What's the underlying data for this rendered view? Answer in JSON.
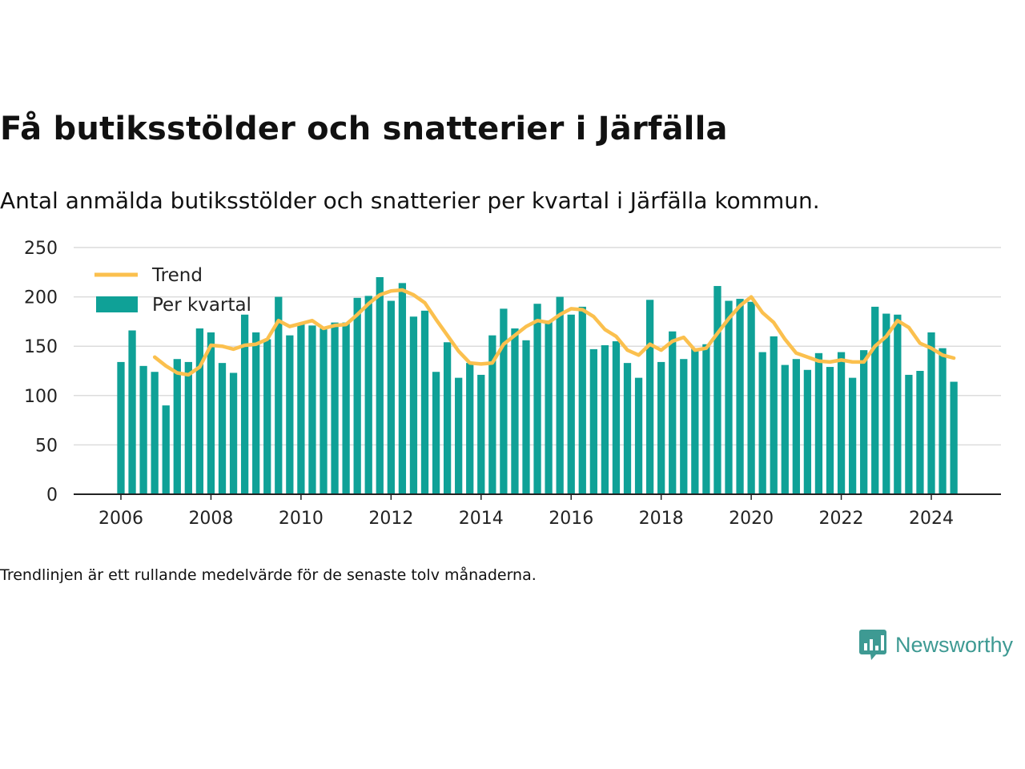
{
  "title": "Få butiksstölder och snatterier i Järfälla",
  "subtitle": "Antal anmälda butiksstölder och snatterier per kvartal i Järfälla kommun.",
  "note": "Trendlinjen är ett rullande medelvärde för de senaste tolv månaderna.",
  "brand": {
    "name": "Newsworthy",
    "icon": "chart-bubble-icon",
    "color": "#3e9a93"
  },
  "colors": {
    "bar": "#0fa197",
    "trend": "#fbc04e",
    "grid": "#dcdcdc",
    "axis": "#222222"
  },
  "chart_data": {
    "type": "bar",
    "title": "",
    "xlabel": "",
    "ylabel": "",
    "ylim": [
      0,
      250
    ],
    "yticks": [
      0,
      50,
      100,
      150,
      200,
      250
    ],
    "xticks": [
      2006,
      2008,
      2010,
      2012,
      2014,
      2016,
      2018,
      2020,
      2022,
      2024
    ],
    "grid": true,
    "legend": {
      "position": "top-left",
      "entries": [
        "Trend",
        "Per kvartal"
      ]
    },
    "categories": [
      "2006 Q1",
      "2006 Q2",
      "2006 Q3",
      "2006 Q4",
      "2007 Q1",
      "2007 Q2",
      "2007 Q3",
      "2007 Q4",
      "2008 Q1",
      "2008 Q2",
      "2008 Q3",
      "2008 Q4",
      "2009 Q1",
      "2009 Q2",
      "2009 Q3",
      "2009 Q4",
      "2010 Q1",
      "2010 Q2",
      "2010 Q3",
      "2010 Q4",
      "2011 Q1",
      "2011 Q2",
      "2011 Q3",
      "2011 Q4",
      "2012 Q1",
      "2012 Q2",
      "2012 Q3",
      "2012 Q4",
      "2013 Q1",
      "2013 Q2",
      "2013 Q3",
      "2013 Q4",
      "2014 Q1",
      "2014 Q2",
      "2014 Q3",
      "2014 Q4",
      "2015 Q1",
      "2015 Q2",
      "2015 Q3",
      "2015 Q4",
      "2016 Q1",
      "2016 Q2",
      "2016 Q3",
      "2016 Q4",
      "2017 Q1",
      "2017 Q2",
      "2017 Q3",
      "2017 Q4",
      "2018 Q1",
      "2018 Q2",
      "2018 Q3",
      "2018 Q4",
      "2019 Q1",
      "2019 Q2",
      "2019 Q3",
      "2019 Q4",
      "2020 Q1",
      "2020 Q2",
      "2020 Q3",
      "2020 Q4",
      "2021 Q1",
      "2021 Q2",
      "2021 Q3",
      "2021 Q4",
      "2022 Q1",
      "2022 Q2",
      "2022 Q3",
      "2022 Q4",
      "2023 Q1",
      "2023 Q2",
      "2023 Q3",
      "2023 Q4",
      "2024 Q1",
      "2024 Q2",
      "2024 Q3"
    ],
    "series": [
      {
        "name": "Per kvartal",
        "type": "bar",
        "values": [
          134,
          166,
          130,
          124,
          90,
          137,
          134,
          168,
          164,
          133,
          123,
          182,
          164,
          157,
          200,
          161,
          172,
          171,
          168,
          174,
          174,
          199,
          201,
          220,
          196,
          214,
          180,
          186,
          124,
          154,
          118,
          133,
          121,
          161,
          188,
          168,
          156,
          193,
          176,
          200,
          182,
          190,
          147,
          151,
          155,
          133,
          118,
          197,
          134,
          165,
          137,
          148,
          152,
          211,
          196,
          198,
          195,
          144,
          160,
          131,
          137,
          126,
          143,
          129,
          144,
          118,
          146,
          190,
          183,
          182,
          121,
          125,
          164,
          148,
          114
        ]
      },
      {
        "name": "Trend",
        "type": "line",
        "values": [
          null,
          null,
          null,
          139,
          130,
          123,
          121,
          129,
          151,
          150,
          147,
          151,
          152,
          157,
          176,
          170,
          173,
          176,
          168,
          171,
          172,
          182,
          193,
          202,
          206,
          207,
          202,
          194,
          177,
          161,
          145,
          133,
          132,
          133,
          152,
          161,
          170,
          176,
          174,
          182,
          188,
          187,
          180,
          167,
          160,
          146,
          141,
          152,
          146,
          155,
          159,
          146,
          148,
          163,
          178,
          191,
          200,
          184,
          174,
          157,
          143,
          139,
          135,
          134,
          136,
          134,
          134,
          150,
          160,
          176,
          169,
          153,
          148,
          141,
          138
        ]
      }
    ]
  }
}
